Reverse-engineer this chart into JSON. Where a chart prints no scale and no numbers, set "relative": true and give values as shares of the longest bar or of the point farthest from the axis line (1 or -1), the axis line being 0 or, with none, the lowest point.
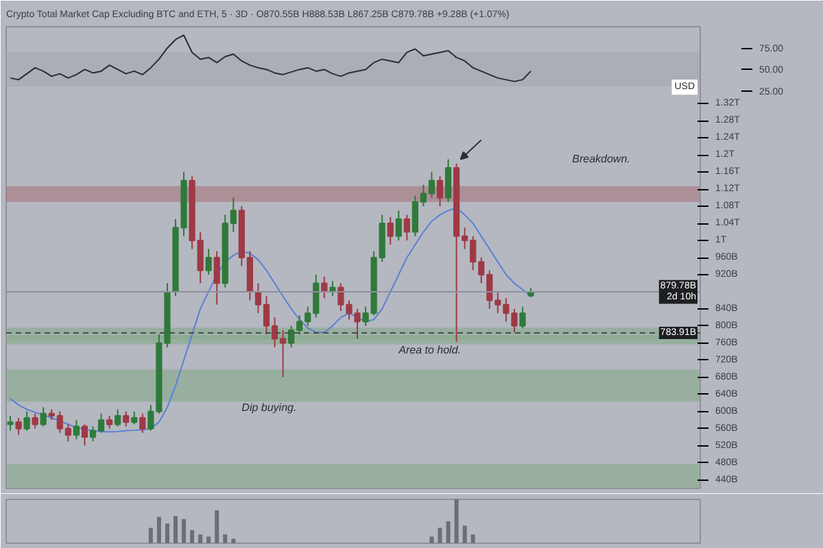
{
  "chart_data": [
    {
      "type": "candlestick",
      "title": "Crypto Total Market Cap Excluding BTC and ETH, 5 · 3D · O870.55B H888.53B L867.25B C879.78B +9.28B (+1.07%)",
      "categories": [
        null,
        null,
        null,
        null,
        null,
        null,
        null,
        null,
        null,
        null,
        null,
        null,
        null,
        null,
        null,
        null,
        null,
        null,
        null,
        null,
        null,
        null,
        null,
        null,
        null,
        null,
        null,
        null,
        null,
        null,
        null,
        null,
        null,
        null,
        null,
        null,
        null,
        null,
        null,
        null,
        null,
        null,
        null,
        null,
        null,
        null,
        null,
        null,
        null,
        null,
        null,
        null,
        null,
        null,
        null,
        null,
        null,
        null,
        null,
        null,
        null,
        null,
        null,
        null,
        null,
        null,
        null,
        null,
        null,
        null,
        null,
        null,
        null,
        null,
        null,
        null,
        null,
        null,
        null,
        null,
        null,
        null,
        null,
        null
      ],
      "ohlc": [
        [
          570000000000.0,
          590000000000.0,
          555000000000.0,
          575000000000.0
        ],
        [
          575000000000.0,
          585000000000.0,
          545000000000.0,
          560000000000.0
        ],
        [
          560000000000.0,
          600000000000.0,
          555000000000.0,
          585000000000.0
        ],
        [
          585000000000.0,
          595000000000.0,
          560000000000.0,
          570000000000.0
        ],
        [
          570000000000.0,
          610000000000.0,
          565000000000.0,
          595000000000.0
        ],
        [
          595000000000.0,
          605000000000.0,
          580000000000.0,
          590000000000.0
        ],
        [
          590000000000.0,
          600000000000.0,
          550000000000.0,
          560000000000.0
        ],
        [
          560000000000.0,
          570000000000.0,
          530000000000.0,
          545000000000.0
        ],
        [
          545000000000.0,
          580000000000.0,
          535000000000.0,
          565000000000.0
        ],
        [
          565000000000.0,
          570000000000.0,
          520000000000.0,
          540000000000.0
        ],
        [
          540000000000.0,
          565000000000.0,
          530000000000.0,
          555000000000.0
        ],
        [
          555000000000.0,
          595000000000.0,
          550000000000.0,
          580000000000.0
        ],
        [
          580000000000.0,
          590000000000.0,
          560000000000.0,
          570000000000.0
        ],
        [
          570000000000.0,
          605000000000.0,
          565000000000.0,
          590000000000.0
        ],
        [
          590000000000.0,
          600000000000.0,
          565000000000.0,
          575000000000.0
        ],
        [
          575000000000.0,
          600000000000.0,
          570000000000.0,
          585000000000.0
        ],
        [
          585000000000.0,
          595000000000.0,
          550000000000.0,
          560000000000.0
        ],
        [
          560000000000.0,
          615000000000.0,
          555000000000.0,
          600000000000.0
        ],
        [
          600000000000.0,
          780000000000.0,
          595000000000.0,
          760000000000.0
        ],
        [
          760000000000.0,
          900000000000.0,
          750000000000.0,
          880000000000.0
        ],
        [
          880000000000.0,
          1050000000000.0,
          870000000000.0,
          1030000000000.0
        ],
        [
          1030000000000.0,
          1160000000000.0,
          1010000000000.0,
          1140000000000.0
        ],
        [
          1140000000000.0,
          1150000000000.0,
          980000000000.0,
          1000000000000.0
        ],
        [
          1000000000000.0,
          1020000000000.0,
          900000000000.0,
          930000000000.0
        ],
        [
          930000000000.0,
          980000000000.0,
          920000000000.0,
          960000000000.0
        ],
        [
          960000000000.0,
          975000000000.0,
          850000000000.0,
          900000000000.0
        ],
        [
          900000000000.0,
          1060000000000.0,
          890000000000.0,
          1040000000000.0
        ],
        [
          1040000000000.0,
          1100000000000.0,
          1020000000000.0,
          1070000000000.0
        ],
        [
          1070000000000.0,
          1080000000000.0,
          940000000000.0,
          960000000000.0
        ],
        [
          960000000000.0,
          975000000000.0,
          860000000000.0,
          880000000000.0
        ],
        [
          880000000000.0,
          900000000000.0,
          830000000000.0,
          850000000000.0
        ],
        [
          850000000000.0,
          870000000000.0,
          780000000000.0,
          800000000000.0
        ],
        [
          800000000000.0,
          820000000000.0,
          750000000000.0,
          770000000000.0
        ],
        [
          770000000000.0,
          790000000000.0,
          680000000000.0,
          760000000000.0
        ],
        [
          760000000000.0,
          800000000000.0,
          750000000000.0,
          790000000000.0
        ],
        [
          790000000000.0,
          825000000000.0,
          780000000000.0,
          810000000000.0
        ],
        [
          810000000000.0,
          845000000000.0,
          800000000000.0,
          830000000000.0
        ],
        [
          830000000000.0,
          920000000000.0,
          820000000000.0,
          900000000000.0
        ],
        [
          900000000000.0,
          915000000000.0,
          865000000000.0,
          880000000000.0
        ],
        [
          880000000000.0,
          905000000000.0,
          870000000000.0,
          890000000000.0
        ],
        [
          890000000000.0,
          900000000000.0,
          835000000000.0,
          850000000000.0
        ],
        [
          850000000000.0,
          860000000000.0,
          815000000000.0,
          830000000000.0
        ],
        [
          830000000000.0,
          840000000000.0,
          770000000000.0,
          810000000000.0
        ],
        [
          810000000000.0,
          845000000000.0,
          800000000000.0,
          830000000000.0
        ],
        [
          830000000000.0,
          975000000000.0,
          825000000000.0,
          960000000000.0
        ],
        [
          960000000000.0,
          1060000000000.0,
          950000000000.0,
          1040000000000.0
        ],
        [
          1040000000000.0,
          1055000000000.0,
          990000000000.0,
          1010000000000.0
        ],
        [
          1010000000000.0,
          1070000000000.0,
          1000000000000.0,
          1050000000000.0
        ],
        [
          1050000000000.0,
          1060000000000.0,
          1000000000000.0,
          1020000000000.0
        ],
        [
          1020000000000.0,
          1105000000000.0,
          1010000000000.0,
          1090000000000.0
        ],
        [
          1090000000000.0,
          1130000000000.0,
          1080000000000.0,
          1110000000000.0
        ],
        [
          1110000000000.0,
          1160000000000.0,
          1100000000000.0,
          1140000000000.0
        ],
        [
          1140000000000.0,
          1150000000000.0,
          1080000000000.0,
          1100000000000.0
        ],
        [
          1100000000000.0,
          1190000000000.0,
          1090000000000.0,
          1170000000000.0
        ],
        [
          1170000000000.0,
          1180000000000.0,
          763000000000.0,
          1010000000000.0
        ],
        [
          1010000000000.0,
          1030000000000.0,
          980000000000.0,
          1000000000000.0
        ],
        [
          1000000000000.0,
          1010000000000.0,
          930000000000.0,
          950000000000.0
        ],
        [
          950000000000.0,
          960000000000.0,
          900000000000.0,
          920000000000.0
        ],
        [
          920000000000.0,
          930000000000.0,
          840000000000.0,
          860000000000.0
        ],
        [
          860000000000.0,
          880000000000.0,
          830000000000.0,
          850000000000.0
        ],
        [
          850000000000.0,
          865000000000.0,
          810000000000.0,
          830000000000.0
        ],
        [
          830000000000.0,
          840000000000.0,
          785000000000.0,
          800000000000.0
        ],
        [
          800000000000.0,
          845000000000.0,
          795000000000.0,
          830000000000.0
        ],
        [
          870550000000.0,
          888530000000.0,
          867250000000.0,
          879780000000.0
        ],
        null,
        null,
        null,
        null,
        null,
        null,
        null,
        null,
        null,
        null,
        null,
        null,
        null,
        null,
        null,
        null,
        null,
        null,
        null,
        null
      ],
      "series": [
        {
          "type": "line",
          "color": "#5b7fd6",
          "values": [
            630000000000.0,
            615000000000.0,
            605000000000.0,
            598000000000.0,
            592000000000.0,
            585000000000.0,
            578000000000.0,
            570000000000.0,
            563000000000.0,
            558000000000.0,
            555000000000.0,
            553000000000.0,
            552000000000.0,
            553000000000.0,
            555000000000.0,
            556000000000.0,
            557000000000.0,
            560000000000.0,
            575000000000.0,
            610000000000.0,
            660000000000.0,
            720000000000.0,
            780000000000.0,
            840000000000.0,
            880000000000.0,
            920000000000.0,
            950000000000.0,
            965000000000.0,
            975000000000.0,
            970000000000.0,
            955000000000.0,
            930000000000.0,
            900000000000.0,
            870000000000.0,
            840000000000.0,
            815000000000.0,
            795000000000.0,
            785000000000.0,
            785000000000.0,
            800000000000.0,
            820000000000.0,
            830000000000.0,
            820000000000.0,
            810000000000.0,
            815000000000.0,
            840000000000.0,
            880000000000.0,
            920000000000.0,
            960000000000.0,
            990000000000.0,
            1020000000000.0,
            1045000000000.0,
            1060000000000.0,
            1070000000000.0,
            1076000000000.0,
            1060000000000.0,
            1040000000000.0,
            1010000000000.0,
            980000000000.0,
            950000000000.0,
            920000000000.0,
            900000000000.0,
            885000000000.0,
            870000000000.0,
            null,
            null,
            null,
            null,
            null,
            null,
            null,
            null,
            null,
            null,
            null,
            null,
            null,
            null,
            null,
            null,
            null,
            null,
            null,
            null
          ]
        },
        {
          "type": "line",
          "axis": "y2",
          "color": "#2b2d33",
          "values": [
            40,
            38,
            45,
            52,
            48,
            42,
            45,
            40,
            44,
            50,
            46,
            48,
            55,
            50,
            45,
            48,
            44,
            52,
            62,
            75,
            85,
            90,
            70,
            62,
            64,
            58,
            65,
            68,
            60,
            55,
            52,
            50,
            46,
            44,
            47,
            50,
            52,
            48,
            50,
            45,
            42,
            46,
            48,
            50,
            58,
            62,
            60,
            58,
            70,
            74,
            66,
            68,
            70,
            72,
            64,
            60,
            52,
            48,
            44,
            40,
            38,
            36,
            38,
            48,
            null,
            null,
            null,
            null,
            null,
            null,
            null,
            null,
            null,
            null,
            null,
            null,
            null,
            null,
            null,
            null,
            null,
            null,
            null,
            null
          ]
        }
      ],
      "ylim": [
        420000000000.0,
        1500000000000.0
      ],
      "yticks": [
        {
          "value": 440000000000.0,
          "label": "440B"
        },
        {
          "value": 480000000000.0,
          "label": "480B"
        },
        {
          "value": 520000000000.0,
          "label": "520B"
        },
        {
          "value": 560000000000.0,
          "label": "560B"
        },
        {
          "value": 600000000000.0,
          "label": "600B"
        },
        {
          "value": 640000000000.0,
          "label": "640B"
        },
        {
          "value": 680000000000.0,
          "label": "680B"
        },
        {
          "value": 720000000000.0,
          "label": "720B"
        },
        {
          "value": 760000000000.0,
          "label": "760B"
        },
        {
          "value": 800000000000.0,
          "label": "800B"
        },
        {
          "value": 840000000000.0,
          "label": "840B"
        },
        {
          "value": 920000000000.0,
          "label": "920B"
        },
        {
          "value": 960000000000.0,
          "label": "960B"
        },
        {
          "value": 1000000000000.0,
          "label": "1T"
        },
        {
          "value": 1040000000000.0,
          "label": "1.04T"
        },
        {
          "value": 1080000000000.0,
          "label": "1.08T"
        },
        {
          "value": 1120000000000.0,
          "label": "1.12T"
        },
        {
          "value": 1160000000000.0,
          "label": "1.16T"
        },
        {
          "value": 1200000000000.0,
          "label": "1.2T"
        },
        {
          "value": 1240000000000.0,
          "label": "1.24T"
        },
        {
          "value": 1280000000000.0,
          "label": "1.28T"
        },
        {
          "value": 1320000000000.0,
          "label": "1.32T"
        }
      ],
      "y2lim": [
        -440,
        100
      ],
      "y2ticks": [
        {
          "value": 25,
          "label": "25.00"
        },
        {
          "value": 50,
          "label": "50.00"
        },
        {
          "value": 75,
          "label": "75.00"
        }
      ],
      "bands": [
        {
          "axis": "y",
          "from": 1090000000000.0,
          "to": 1127000000000.0,
          "color": "#a8737b"
        },
        {
          "axis": "y",
          "from": 768000000000.0,
          "to": 796000000000.0,
          "color": "#86a88a"
        },
        {
          "axis": "y",
          "from": 757000000000.0,
          "to": 777000000000.0,
          "color": "#86a88a"
        },
        {
          "axis": "y",
          "from": 623000000000.0,
          "to": 698000000000.0,
          "color": "#86a88a"
        },
        {
          "axis": "y",
          "from": 421000000000.0,
          "to": 477000000000.0,
          "color": "#86a88a"
        },
        {
          "axis": "y2",
          "from": 30,
          "to": 70,
          "color": "#a3a6ae"
        }
      ],
      "ref_lines": [
        {
          "axis": "y",
          "value": 879780000000.0,
          "label": "879.78B\n2d 10h",
          "color": "#8e9199",
          "line_style": "solid"
        },
        {
          "axis": "y",
          "value": 783910000000.0,
          "label": "783.91B",
          "color": "#4a4c52",
          "line_style": "dashed"
        }
      ],
      "annotations": [
        "Breakdown.",
        "Area to hold.",
        "Dip buying.",
        "USD"
      ],
      "tick_labels": "y"
    },
    {
      "type": "bar",
      "relative": true,
      "categories": [
        null,
        null,
        null,
        null,
        null,
        null,
        null,
        null,
        null,
        null,
        null,
        null,
        null,
        null,
        null,
        null,
        null,
        null,
        null,
        null,
        null,
        null,
        null,
        null,
        null,
        null,
        null,
        null,
        null,
        null,
        null,
        null,
        null,
        null,
        null,
        null,
        null,
        null,
        null,
        null,
        null,
        null,
        null,
        null,
        null,
        null,
        null,
        null,
        null,
        null,
        null,
        null,
        null,
        null,
        null,
        null,
        null,
        null,
        null,
        null,
        null,
        null,
        null,
        null,
        null,
        null,
        null,
        null,
        null,
        null,
        null,
        null,
        null,
        null,
        null,
        null,
        null,
        null,
        null,
        null,
        null,
        null,
        null,
        null
      ],
      "series": [
        {
          "color": "#6b6e75",
          "values": [
            null,
            null,
            null,
            null,
            null,
            null,
            null,
            null,
            null,
            null,
            null,
            null,
            null,
            null,
            null,
            null,
            null,
            0.35,
            0.6,
            0.45,
            0.62,
            0.55,
            0.3,
            0.2,
            0.15,
            0.75,
            0.2,
            0.1,
            null,
            null,
            null,
            null,
            null,
            null,
            null,
            null,
            null,
            null,
            null,
            null,
            null,
            null,
            null,
            null,
            null,
            null,
            null,
            null,
            null,
            null,
            null,
            0.15,
            0.35,
            0.5,
            1,
            0.4,
            0.2,
            null,
            null,
            null,
            null,
            null,
            null,
            null,
            null,
            null,
            null,
            null,
            null,
            null,
            null,
            null,
            null,
            null,
            null,
            null,
            null,
            null,
            null,
            null,
            null,
            null,
            null,
            null
          ]
        }
      ],
      "tick_labels": false
    }
  ]
}
